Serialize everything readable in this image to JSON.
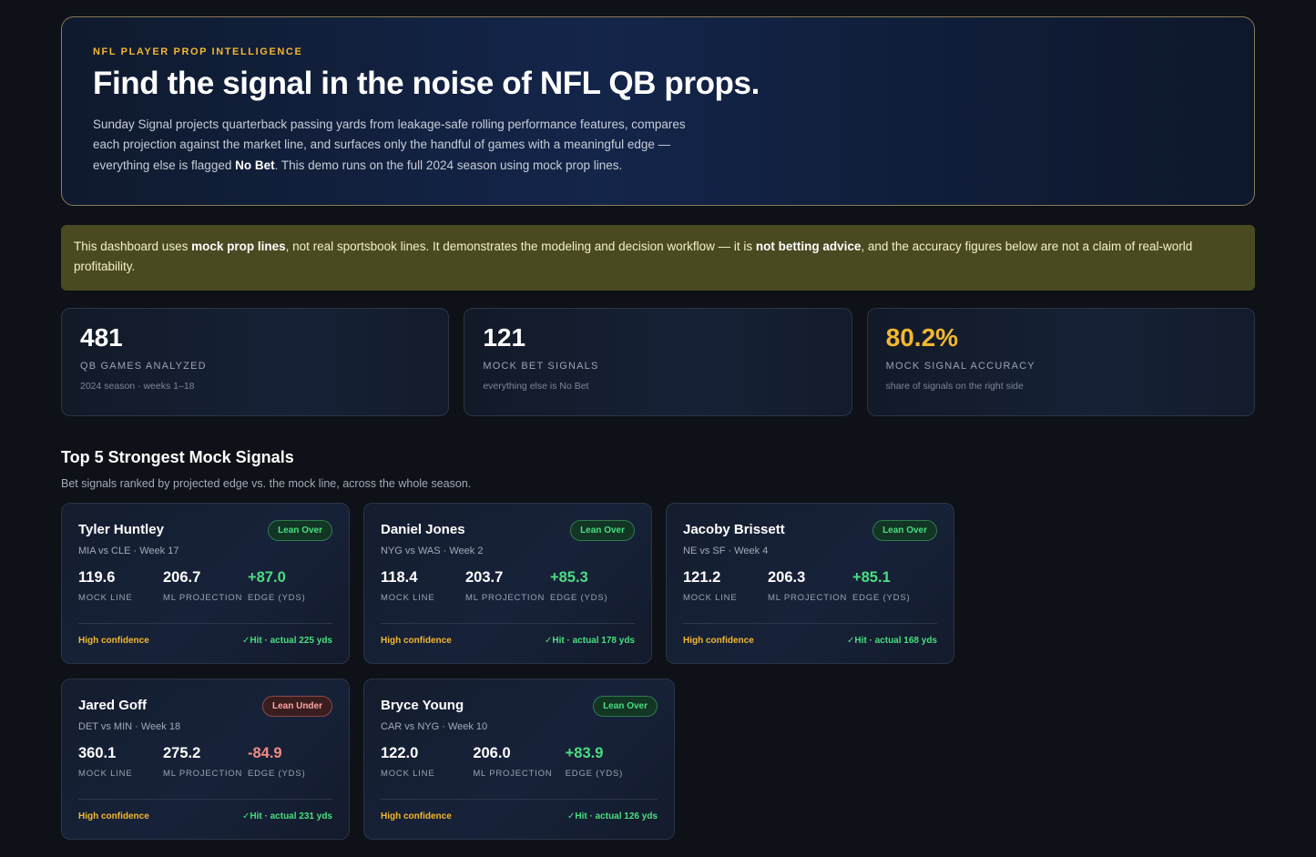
{
  "hero": {
    "eyebrow": "NFL PLAYER PROP INTELLIGENCE",
    "title": "Find the signal in the noise of NFL QB props.",
    "desc_part1": "Sunday Signal projects quarterback passing yards from leakage-safe rolling performance features, compares each projection against the market line, and surfaces only the handful of games with a meaningful edge — everything else is flagged ",
    "desc_bold": "No Bet",
    "desc_part2": ". This demo runs on the full 2024 season using mock prop lines."
  },
  "disclaimer": {
    "part1": "This dashboard uses ",
    "bold1": "mock prop lines",
    "part2": ", not real sportsbook lines. It demonstrates the modeling and decision workflow — it is ",
    "bold2": "not betting advice",
    "part3": ", and the accuracy figures below are not a claim of real-world profitability."
  },
  "stats": [
    {
      "value": "481",
      "label": "QB GAMES ANALYZED",
      "sub": "2024 season · weeks 1–18"
    },
    {
      "value": "121",
      "label": "MOCK BET SIGNALS",
      "sub": "everything else is No Bet"
    },
    {
      "value": "80.2%",
      "label": "MOCK SIGNAL ACCURACY",
      "sub": "share of signals on the right side"
    }
  ],
  "section": {
    "title": "Top 5 Strongest Mock Signals",
    "subtitle": "Bet signals ranked by projected edge vs. the mock line, across the whole season."
  },
  "metric_labels": {
    "line": "MOCK LINE",
    "proj": "ML PROJECTION",
    "edge": "EDGE (YDS)"
  },
  "cards": [
    {
      "player": "Tyler Huntley",
      "pill": "Lean Over",
      "matchup": "MIA vs CLE · Week 17",
      "line": "119.6",
      "proj": "206.7",
      "edge": "+87.0",
      "confidence": "High confidence",
      "result": "✓Hit · actual 225 yds"
    },
    {
      "player": "Daniel Jones",
      "pill": "Lean Over",
      "matchup": "NYG vs WAS · Week 2",
      "line": "118.4",
      "proj": "203.7",
      "edge": "+85.3",
      "confidence": "High confidence",
      "result": "✓Hit · actual 178 yds"
    },
    {
      "player": "Jacoby Brissett",
      "pill": "Lean Over",
      "matchup": "NE vs SF · Week 4",
      "line": "121.2",
      "proj": "206.3",
      "edge": "+85.1",
      "confidence": "High confidence",
      "result": "✓Hit · actual 168 yds"
    },
    {
      "player": "Jared Goff",
      "pill": "Lean Under",
      "matchup": "DET vs MIN · Week 18",
      "line": "360.1",
      "proj": "275.2",
      "edge": "-84.9",
      "confidence": "High confidence",
      "result": "✓Hit · actual 231 yds"
    },
    {
      "player": "Bryce Young",
      "pill": "Lean Over",
      "matchup": "CAR vs NYG · Week 10",
      "line": "122.0",
      "proj": "206.0",
      "edge": "+83.9",
      "confidence": "High confidence",
      "result": "✓Hit · actual 126 yds"
    }
  ]
}
